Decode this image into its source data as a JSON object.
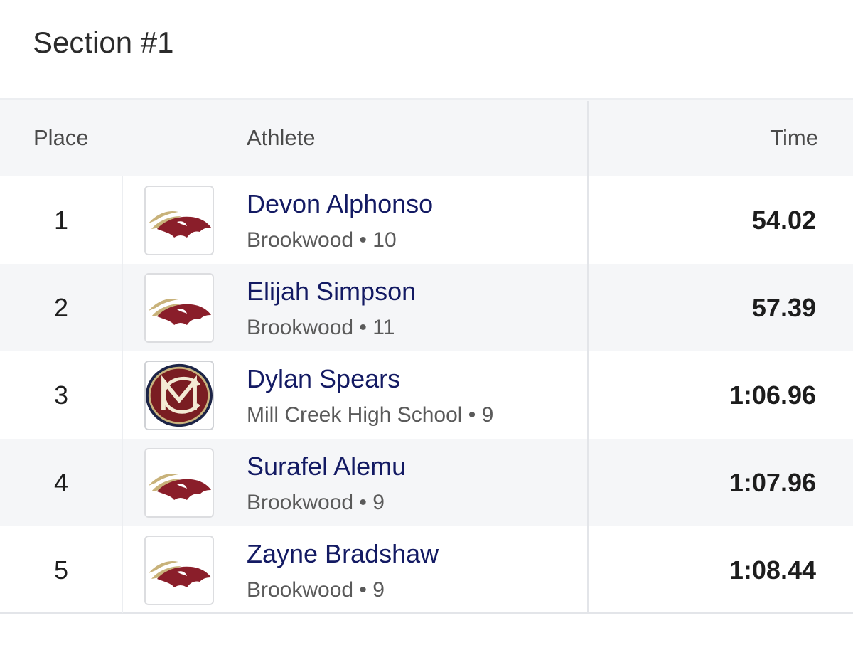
{
  "section": {
    "title": "Section #1"
  },
  "header": {
    "place": "Place",
    "athlete": "Athlete",
    "time": "Time"
  },
  "colors": {
    "name": "#131a63",
    "brookwood_maroon": "#8a1e2a",
    "brookwood_gold": "#c8b27a",
    "millcreek_maroon": "#7a1d22",
    "millcreek_navy": "#1c2447",
    "millcreek_gold": "#c9b37e"
  },
  "rows": [
    {
      "place": "1",
      "name": "Devon Alphonso",
      "school": "Brookwood",
      "grade": "10",
      "meta": "Brookwood • 10",
      "time": "54.02",
      "logo": "brookwood-bronco-logo"
    },
    {
      "place": "2",
      "name": "Elijah Simpson",
      "school": "Brookwood",
      "grade": "11",
      "meta": "Brookwood • 11",
      "time": "57.39",
      "logo": "brookwood-bronco-logo"
    },
    {
      "place": "3",
      "name": "Dylan Spears",
      "school": "Mill Creek High School",
      "grade": "9",
      "meta": "Mill Creek High School • 9",
      "time": "1:06.96",
      "logo": "mill-creek-mc-logo"
    },
    {
      "place": "4",
      "name": "Surafel Alemu",
      "school": "Brookwood",
      "grade": "9",
      "meta": "Brookwood • 9",
      "time": "1:07.96",
      "logo": "brookwood-bronco-logo"
    },
    {
      "place": "5",
      "name": "Zayne Bradshaw",
      "school": "Brookwood",
      "grade": "9",
      "meta": "Brookwood • 9",
      "time": "1:08.44",
      "logo": "brookwood-bronco-logo"
    }
  ]
}
